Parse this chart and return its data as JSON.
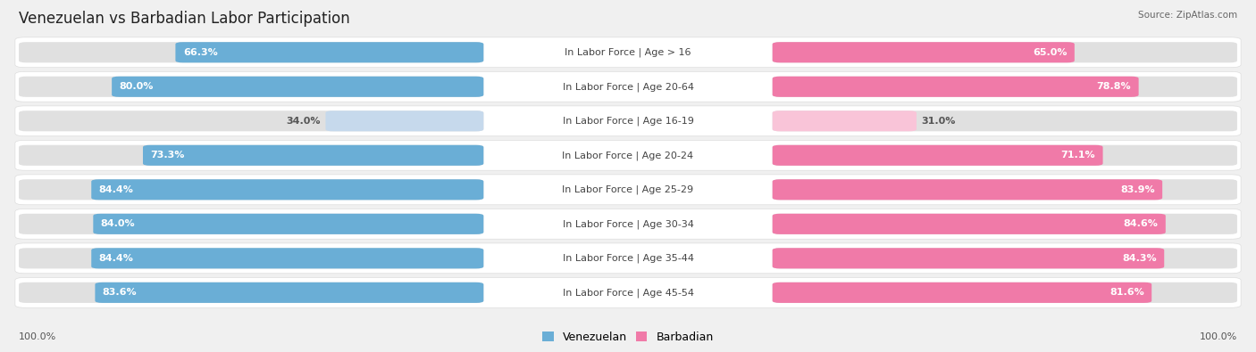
{
  "title": "Venezuelan vs Barbadian Labor Participation",
  "source": "Source: ZipAtlas.com",
  "categories": [
    "In Labor Force | Age > 16",
    "In Labor Force | Age 20-64",
    "In Labor Force | Age 16-19",
    "In Labor Force | Age 20-24",
    "In Labor Force | Age 25-29",
    "In Labor Force | Age 30-34",
    "In Labor Force | Age 35-44",
    "In Labor Force | Age 45-54"
  ],
  "venezuelan": [
    66.3,
    80.0,
    34.0,
    73.3,
    84.4,
    84.0,
    84.4,
    83.6
  ],
  "barbadian": [
    65.0,
    78.8,
    31.0,
    71.1,
    83.9,
    84.6,
    84.3,
    81.6
  ],
  "venezuelan_color": "#6aaed6",
  "venezuelan_light_color": "#c6d9ec",
  "barbadian_color": "#f07aa8",
  "barbadian_light_color": "#f9c4d8",
  "background_color": "#f0f0f0",
  "row_white": "#ffffff",
  "bar_track_color": "#e0e0e0",
  "center_label_color": "#444444",
  "max_val": 100.0,
  "title_fontsize": 12,
  "label_fontsize": 8,
  "value_fontsize": 8,
  "legend_fontsize": 9
}
